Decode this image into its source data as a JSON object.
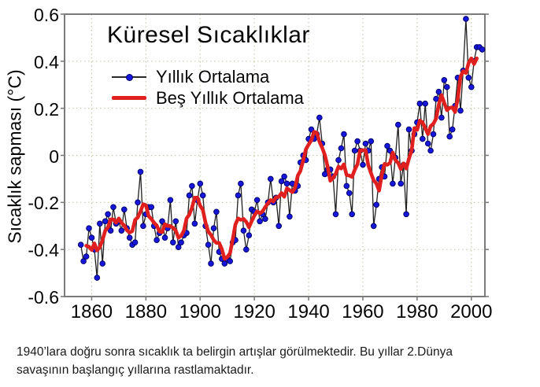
{
  "chart_data": {
    "type": "line",
    "title": "Küresel Sıcaklıklar",
    "ylabel": "Sıcaklık sapması (°C)",
    "xlabel": "",
    "x_range": [
      1850,
      2005
    ],
    "y_range": [
      -0.6,
      0.6
    ],
    "x_ticks": [
      1860,
      1880,
      1900,
      1920,
      1940,
      1960,
      1980,
      2000
    ],
    "y_ticks": [
      0.6,
      0.4,
      0.2,
      0,
      -0.2,
      -0.4,
      -0.6
    ],
    "y_tick_labels": [
      "0.6",
      "0.4",
      "0.2",
      "0",
      "-0.2",
      "-0.4",
      "-0.6"
    ],
    "grid": "dotted",
    "legend_position": "upper-left-inside",
    "legend": [
      {
        "name": "Yıllık Ortalama",
        "style": "thin black line with blue round markers"
      },
      {
        "name": "Beş Yıllık Ortalama",
        "style": "thick red line"
      }
    ],
    "series": [
      {
        "name": "Yıllık Ortalama",
        "start_year": 1856,
        "end_year": 2004,
        "values": [
          -0.38,
          -0.45,
          -0.43,
          -0.31,
          -0.35,
          -0.4,
          -0.52,
          -0.29,
          -0.46,
          -0.28,
          -0.25,
          -0.32,
          -0.22,
          -0.29,
          -0.28,
          -0.32,
          -0.23,
          -0.31,
          -0.35,
          -0.38,
          -0.37,
          -0.2,
          -0.07,
          -0.3,
          -0.25,
          -0.22,
          -0.22,
          -0.3,
          -0.36,
          -0.33,
          -0.28,
          -0.35,
          -0.31,
          -0.19,
          -0.37,
          -0.28,
          -0.39,
          -0.37,
          -0.34,
          -0.33,
          -0.17,
          -0.13,
          -0.29,
          -0.19,
          -0.12,
          -0.17,
          -0.3,
          -0.38,
          -0.46,
          -0.31,
          -0.24,
          -0.41,
          -0.44,
          -0.46,
          -0.44,
          -0.45,
          -0.37,
          -0.36,
          -0.17,
          -0.12,
          -0.32,
          -0.4,
          -0.34,
          -0.23,
          -0.24,
          -0.19,
          -0.28,
          -0.25,
          -0.27,
          -0.2,
          -0.1,
          -0.2,
          -0.18,
          -0.3,
          -0.11,
          -0.09,
          -0.12,
          -0.26,
          -0.12,
          -0.15,
          -0.13,
          -0.03,
          0.0,
          -0.02,
          0.07,
          0.11,
          0.07,
          0.09,
          0.16,
          0.05,
          -0.08,
          -0.06,
          -0.06,
          -0.09,
          -0.25,
          -0.02,
          0.03,
          0.09,
          -0.13,
          -0.16,
          -0.25,
          0.02,
          0.06,
          0.02,
          -0.04,
          0.05,
          0.02,
          0.06,
          -0.3,
          -0.21,
          -0.1,
          -0.05,
          -0.09,
          0.04,
          0.02,
          -0.12,
          -0.01,
          0.13,
          -0.12,
          -0.04,
          -0.25,
          0.11,
          0.02,
          0.09,
          0.14,
          0.22,
          0.07,
          0.22,
          0.05,
          0.02,
          0.09,
          0.24,
          0.27,
          0.16,
          0.32,
          0.29,
          0.08,
          0.11,
          0.21,
          0.33,
          0.19,
          0.36,
          0.58,
          0.33,
          0.29,
          0.4,
          0.46,
          0.46,
          0.45
        ]
      },
      {
        "name": "Beş Yıllık Ortalama",
        "derived": "centered 5-year moving average of Yıllık Ortalama"
      }
    ],
    "colors": {
      "annual_line": "#1f1f1f",
      "marker_fill": "#1717dc",
      "marker_edge": "#00006e",
      "five_year_line": "#e01f1f",
      "grid": "#c9c9ad",
      "axis_frame": "#7b7b7b",
      "text": "#050505"
    }
  },
  "caption": {
    "line1": "1940’lara doğru sonra sıcaklık ta belirgin artışlar görülmektedir. Bu yıllar 2.Dünya",
    "line2": "savaşının başlangıç yıllarına rastlamaktadır."
  }
}
